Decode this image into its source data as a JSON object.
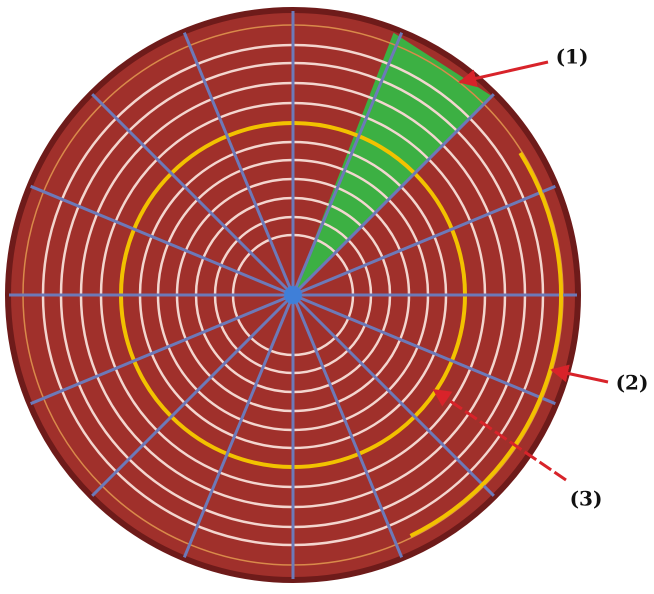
{
  "labels": [
    "(1)",
    "(2)",
    "(3)"
  ]
}
